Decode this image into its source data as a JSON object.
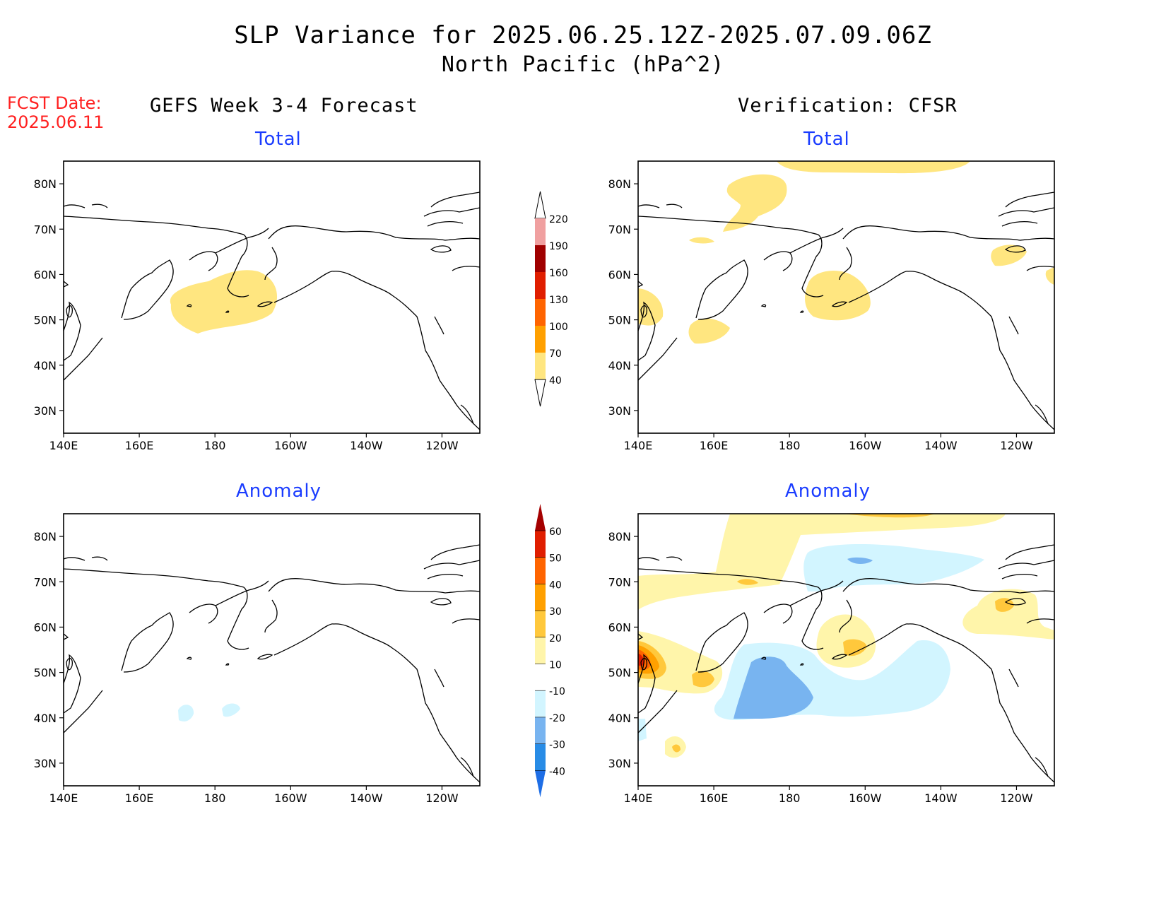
{
  "title_line1": "SLP Variance for 2025.06.25.12Z-2025.07.09.06Z",
  "title_line2": "North Pacific (hPa^2)",
  "fcst_label": "FCST Date:",
  "fcst_date": "2025.06.11",
  "left_column_title": "GEFS Week 3-4 Forecast",
  "right_column_title": "Verification: CFSR",
  "panel_titles": {
    "total": "Total",
    "anomaly": "Anomaly"
  },
  "axes": {
    "lat_labels": [
      "80N",
      "70N",
      "60N",
      "50N",
      "40N",
      "30N"
    ],
    "lon_labels": [
      "140E",
      "160E",
      "180",
      "160W",
      "140W",
      "120W"
    ],
    "lat_range": [
      25,
      85
    ],
    "lon_range": [
      140,
      250
    ]
  },
  "colorbar_total": {
    "levels": [
      "40",
      "70",
      "100",
      "130",
      "160",
      "190",
      "220"
    ],
    "colors": [
      "#ffe680",
      "#ffa000",
      "#ff6400",
      "#e01e00",
      "#a00000",
      "#f0a0a0",
      "#ffe8e8"
    ]
  },
  "colorbar_anomaly": {
    "levels": [
      "-40",
      "-30",
      "-20",
      "-10",
      "10",
      "20",
      "30",
      "40",
      "50",
      "60"
    ],
    "colors": [
      "#1e6ee6",
      "#288ce6",
      "#78b4f0",
      "#d2f5ff",
      "#ffffff",
      "#fff5aa",
      "#ffc83c",
      "#ffa000",
      "#ff6400",
      "#e01e00",
      "#a50000"
    ]
  }
}
